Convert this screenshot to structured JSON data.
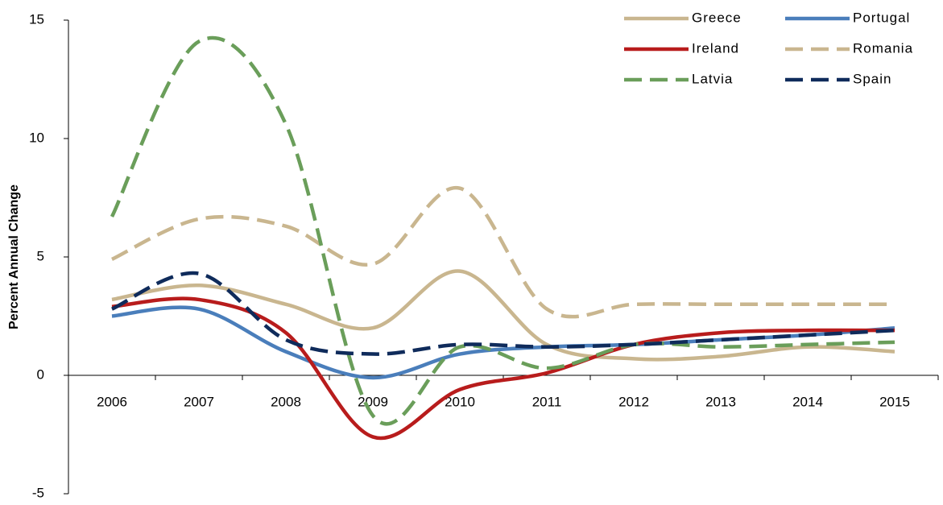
{
  "chart_data": {
    "type": "line",
    "y_label": "Percent Annual Change",
    "categories": [
      "2006",
      "2007",
      "2008",
      "2009",
      "2010",
      "2011",
      "2012",
      "2013",
      "2014",
      "2015"
    ],
    "ylim": [
      -5,
      15
    ],
    "yticks": [
      15,
      10,
      5,
      0,
      -5
    ],
    "series": [
      {
        "name": "Greece",
        "color": "#c9b68f",
        "dashed": false,
        "values": [
          3.2,
          3.8,
          3.0,
          2.0,
          4.4,
          1.3,
          0.7,
          0.8,
          1.2,
          1.0
        ]
      },
      {
        "name": "Portugal",
        "color": "#4a7ebb",
        "dashed": false,
        "values": [
          2.5,
          2.8,
          1.0,
          -0.1,
          0.9,
          1.2,
          1.3,
          1.5,
          1.7,
          2.0
        ]
      },
      {
        "name": "Ireland",
        "color": "#b81c1c",
        "dashed": false,
        "values": [
          2.9,
          3.2,
          1.8,
          -2.6,
          -0.6,
          0.1,
          1.3,
          1.8,
          1.9,
          1.9
        ]
      },
      {
        "name": "Romania",
        "color": "#c9b68f",
        "dashed": true,
        "values": [
          4.9,
          6.6,
          6.3,
          4.7,
          7.9,
          2.8,
          3.0,
          3.0,
          3.0,
          3.0
        ]
      },
      {
        "name": "Latvia",
        "color": "#6a9e5a",
        "dashed": true,
        "values": [
          6.7,
          14.1,
          10.6,
          -1.7,
          1.2,
          0.3,
          1.3,
          1.2,
          1.3,
          1.4
        ]
      },
      {
        "name": "Spain",
        "color": "#0f2b5b",
        "dashed": true,
        "values": [
          2.8,
          4.3,
          1.5,
          0.9,
          1.3,
          1.2,
          1.3,
          1.5,
          1.7,
          1.9
        ]
      }
    ]
  }
}
